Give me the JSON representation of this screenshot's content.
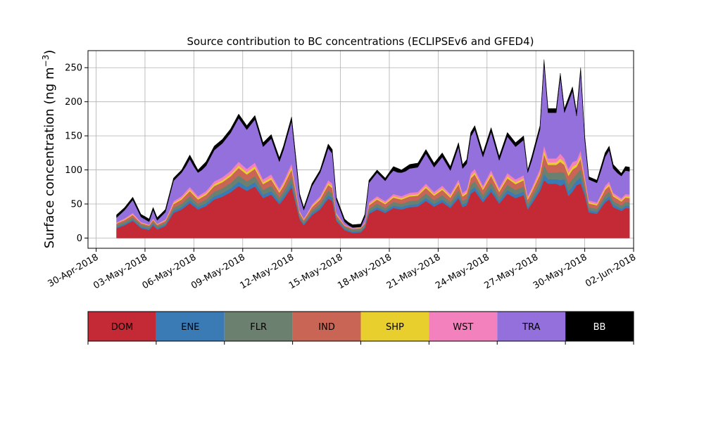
{
  "chart_data": {
    "type": "area",
    "stacked": true,
    "title": "Source contribution to BC concentrations (ECLIPSEv6 and GFED4)",
    "ylabel": "Surface concentration (ng m",
    "ylabel_superscript": "−3",
    "ylabel_suffix": ")",
    "ylim": [
      -15,
      275
    ],
    "yticks": [
      0,
      50,
      100,
      150,
      200,
      250
    ],
    "xlim": [
      "2018-04-29T12:00",
      "2018-06-02T00:00"
    ],
    "xticks": [
      "30-Apr-2018",
      "03-May-2018",
      "06-May-2018",
      "09-May-2018",
      "12-May-2018",
      "15-May-2018",
      "18-May-2018",
      "21-May-2018",
      "24-May-2018",
      "27-May-2018",
      "30-May-2018",
      "02-Jun-2018"
    ],
    "grid": true,
    "legend_location": "bottom",
    "x_start": "2018-05-01T00:00",
    "x_step_hours": 6,
    "total_key_points": [
      [
        "2018-05-01T06:00",
        34
      ],
      [
        "2018-05-01T18:00",
        45
      ],
      [
        "2018-05-02T06:00",
        60
      ],
      [
        "2018-05-02T18:00",
        35
      ],
      [
        "2018-05-03T06:00",
        28
      ],
      [
        "2018-05-03T12:00",
        45
      ],
      [
        "2018-05-03T18:00",
        30
      ],
      [
        "2018-05-04T06:00",
        42
      ],
      [
        "2018-05-04T18:00",
        88
      ],
      [
        "2018-05-05T06:00",
        100
      ],
      [
        "2018-05-05T18:00",
        122
      ],
      [
        "2018-05-06T06:00",
        100
      ],
      [
        "2018-05-06T18:00",
        112
      ],
      [
        "2018-05-07T06:00",
        135
      ],
      [
        "2018-05-07T18:00",
        145
      ],
      [
        "2018-05-08T06:00",
        160
      ],
      [
        "2018-05-08T18:00",
        182
      ],
      [
        "2018-05-09T06:00",
        165
      ],
      [
        "2018-05-09T18:00",
        180
      ],
      [
        "2018-05-10T06:00",
        140
      ],
      [
        "2018-05-10T18:00",
        152
      ],
      [
        "2018-05-11T06:00",
        118
      ],
      [
        "2018-05-11T12:00",
        135
      ],
      [
        "2018-05-12T00:00",
        178
      ],
      [
        "2018-05-12T12:00",
        65
      ],
      [
        "2018-05-12T18:00",
        45
      ],
      [
        "2018-05-13T06:00",
        80
      ],
      [
        "2018-05-13T18:00",
        100
      ],
      [
        "2018-05-14T06:00",
        138
      ],
      [
        "2018-05-14T12:00",
        130
      ],
      [
        "2018-05-14T18:00",
        60
      ],
      [
        "2018-05-15T06:00",
        28
      ],
      [
        "2018-05-15T18:00",
        18
      ],
      [
        "2018-05-16T06:00",
        20
      ],
      [
        "2018-05-16T12:00",
        35
      ],
      [
        "2018-05-16T18:00",
        85
      ],
      [
        "2018-05-17T06:00",
        100
      ],
      [
        "2018-05-17T18:00",
        88
      ],
      [
        "2018-05-18T06:00",
        105
      ],
      [
        "2018-05-18T18:00",
        100
      ],
      [
        "2018-05-19T06:00",
        108
      ],
      [
        "2018-05-19T18:00",
        110
      ],
      [
        "2018-05-20T06:00",
        130
      ],
      [
        "2018-05-20T18:00",
        110
      ],
      [
        "2018-05-21T06:00",
        125
      ],
      [
        "2018-05-21T18:00",
        105
      ],
      [
        "2018-05-22T06:00",
        140
      ],
      [
        "2018-05-22T12:00",
        108
      ],
      [
        "2018-05-22T18:00",
        115
      ],
      [
        "2018-05-23T00:00",
        155
      ],
      [
        "2018-05-23T06:00",
        165
      ],
      [
        "2018-05-23T18:00",
        125
      ],
      [
        "2018-05-24T06:00",
        162
      ],
      [
        "2018-05-24T18:00",
        120
      ],
      [
        "2018-05-25T06:00",
        155
      ],
      [
        "2018-05-25T18:00",
        140
      ],
      [
        "2018-05-26T06:00",
        150
      ],
      [
        "2018-05-26T12:00",
        100
      ],
      [
        "2018-05-26T18:00",
        120
      ],
      [
        "2018-05-27T06:00",
        165
      ],
      [
        "2018-05-27T12:00",
        262
      ],
      [
        "2018-05-27T18:00",
        190
      ],
      [
        "2018-05-28T06:00",
        190
      ],
      [
        "2018-05-28T12:00",
        242
      ],
      [
        "2018-05-28T18:00",
        190
      ],
      [
        "2018-05-29T06:00",
        222
      ],
      [
        "2018-05-29T12:00",
        185
      ],
      [
        "2018-05-29T18:00",
        250
      ],
      [
        "2018-05-30T00:00",
        150
      ],
      [
        "2018-05-30T06:00",
        90
      ],
      [
        "2018-05-30T18:00",
        85
      ],
      [
        "2018-05-31T06:00",
        125
      ],
      [
        "2018-05-31T12:00",
        135
      ],
      [
        "2018-05-31T18:00",
        108
      ],
      [
        "2018-06-01T06:00",
        95
      ],
      [
        "2018-06-01T12:00",
        105
      ],
      [
        "2018-06-01T18:00",
        104
      ]
    ],
    "series": [
      {
        "name": "DOM",
        "color": "#c32a36",
        "label_color": "#000000"
      },
      {
        "name": "ENE",
        "color": "#3a7bb6",
        "label_color": "#000000"
      },
      {
        "name": "FLR",
        "color": "#6c8070",
        "label_color": "#000000"
      },
      {
        "name": "IND",
        "color": "#c96555",
        "label_color": "#000000"
      },
      {
        "name": "SHP",
        "color": "#e8cf2e",
        "label_color": "#000000"
      },
      {
        "name": "WST",
        "color": "#f381bd",
        "label_color": "#000000"
      },
      {
        "name": "TRA",
        "color": "#9470dc",
        "label_color": "#000000"
      },
      {
        "name": "BB",
        "color": "#000000",
        "label_color": "#ffffff"
      }
    ]
  }
}
